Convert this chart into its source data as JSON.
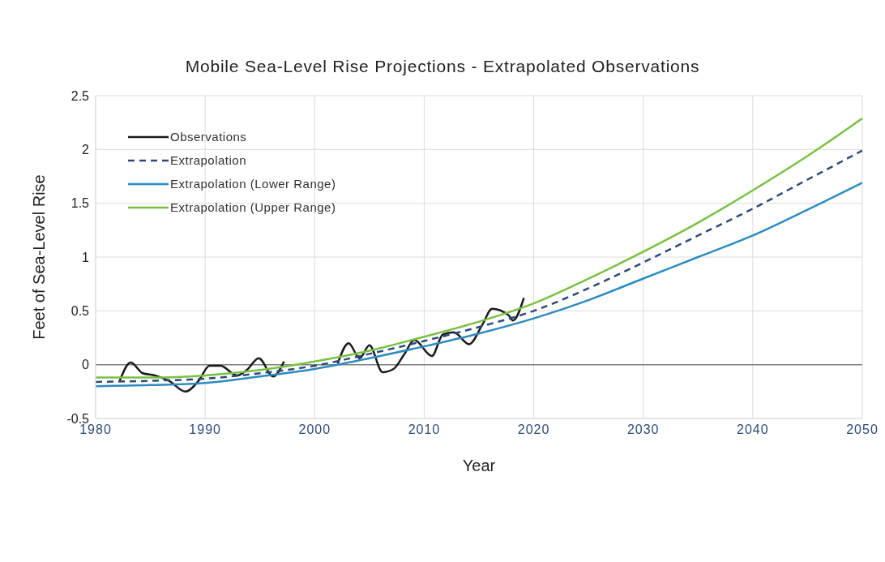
{
  "chart_data": {
    "type": "line",
    "title": "Mobile Sea-Level Rise Projections - Extrapolated Observations",
    "xlabel": "Year",
    "ylabel": "Feet of Sea-Level Rise",
    "xlim": [
      1980,
      2050
    ],
    "xticks": [
      1980,
      1990,
      2000,
      2010,
      2020,
      2030,
      2040,
      2050
    ],
    "ylim": [
      -0.5,
      2.5
    ],
    "yticks": [
      -0.5,
      0,
      0.5,
      1,
      1.5,
      2,
      2.5
    ],
    "grid": true,
    "legend": "top left",
    "marker": "none",
    "ref_lines": [
      {
        "axis": "y",
        "value": 0,
        "color": "#808080"
      }
    ],
    "series": [
      {
        "name": "Observations",
        "color": "#1a1a1a",
        "line_style": "solid",
        "x": [
          1982.2,
          1983.2,
          1984.3,
          1985.4,
          1986.7,
          1988.2,
          1989.4,
          1990.4,
          1991.4,
          1992.9,
          1993.8,
          1994.9,
          1996.2,
          1997.2,
          1999.5,
          2002.1,
          2003.1,
          2004.1,
          2005.0,
          2006.2,
          2007.2,
          2008.2,
          2009.1,
          2010.7,
          2011.7,
          2012.7,
          2014.1,
          2015.3,
          2016.2,
          2017.7,
          2018.1,
          2019.1
        ],
        "values": [
          -0.15,
          0.02,
          -0.08,
          -0.1,
          -0.15,
          -0.25,
          -0.15,
          -0.01,
          -0.01,
          -0.1,
          -0.05,
          0.06,
          -0.11,
          0.03,
          null,
          0.01,
          0.2,
          0.06,
          0.18,
          -0.07,
          -0.04,
          0.1,
          0.23,
          0.08,
          0.28,
          0.3,
          0.19,
          0.37,
          0.52,
          0.46,
          0.41,
          0.62
        ]
      },
      {
        "name": "Extrapolation",
        "color": "#2e4a7a",
        "line_style": "dashed",
        "x": [
          1980,
          1985,
          1990,
          1995,
          2000,
          2005,
          2010,
          2015,
          2020,
          2025,
          2030,
          2035,
          2040,
          2045,
          2050
        ],
        "values": [
          -0.16,
          -0.15,
          -0.13,
          -0.08,
          -0.01,
          0.1,
          0.22,
          0.35,
          0.5,
          0.71,
          0.95,
          1.2,
          1.45,
          1.72,
          1.99
        ]
      },
      {
        "name": "Extrapolation (Lower Range)",
        "color": "#2e8bc0",
        "line_style": "solid",
        "x": [
          1980,
          1985,
          1990,
          1995,
          2000,
          2005,
          2010,
          2015,
          2020,
          2025,
          2030,
          2035,
          2040,
          2045,
          2050
        ],
        "values": [
          -0.2,
          -0.19,
          -0.17,
          -0.11,
          -0.04,
          0.06,
          0.17,
          0.29,
          0.43,
          0.6,
          0.8,
          1.0,
          1.2,
          1.44,
          1.69
        ]
      },
      {
        "name": "Extrapolation (Upper Range)",
        "color": "#7ac143",
        "line_style": "solid",
        "x": [
          1980,
          1985,
          1990,
          1995,
          2000,
          2005,
          2010,
          2015,
          2020,
          2025,
          2030,
          2035,
          2040,
          2045,
          2050
        ],
        "values": [
          -0.12,
          -0.12,
          -0.1,
          -0.05,
          0.03,
          0.13,
          0.26,
          0.4,
          0.57,
          0.8,
          1.05,
          1.32,
          1.62,
          1.94,
          2.29
        ]
      }
    ]
  }
}
